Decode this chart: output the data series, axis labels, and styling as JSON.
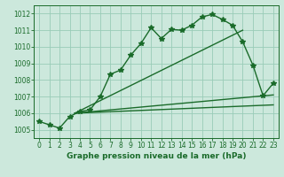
{
  "title": "Graphe pression niveau de la mer (hPa)",
  "bg_color": "#cce8dc",
  "grid_color": "#99ccb8",
  "line_color": "#1a6b2a",
  "xlim": [
    -0.5,
    23.5
  ],
  "ylim": [
    1004.5,
    1012.5
  ],
  "yticks": [
    1005,
    1006,
    1007,
    1008,
    1009,
    1010,
    1011,
    1012
  ],
  "xticks": [
    0,
    1,
    2,
    3,
    4,
    5,
    6,
    7,
    8,
    9,
    10,
    11,
    12,
    13,
    14,
    15,
    16,
    17,
    18,
    19,
    20,
    21,
    22,
    23
  ],
  "x": [
    0,
    1,
    2,
    3,
    4,
    5,
    6,
    7,
    8,
    9,
    10,
    11,
    12,
    13,
    14,
    15,
    16,
    17,
    18,
    19,
    20,
    21,
    22,
    23
  ],
  "y_main": [
    1005.5,
    1005.3,
    1005.1,
    1005.8,
    1006.1,
    1006.2,
    1007.0,
    1008.35,
    1008.6,
    1009.5,
    1010.2,
    1011.15,
    1010.5,
    1011.05,
    1011.0,
    1011.3,
    1011.8,
    1011.95,
    1011.65,
    1011.3,
    1010.3,
    1008.9,
    1007.05,
    1007.8
  ],
  "trend1_x": [
    3.5,
    20
  ],
  "trend1_y": [
    1006.0,
    1011.0
  ],
  "trend2_x": [
    3.5,
    23
  ],
  "trend2_y": [
    1006.0,
    1007.1
  ],
  "trend3_x": [
    3.5,
    23
  ],
  "trend3_y": [
    1006.0,
    1006.5
  ],
  "marker_size": 4.0,
  "lw": 1.0,
  "tick_fontsize": 5.5,
  "xlabel_fontsize": 6.5
}
